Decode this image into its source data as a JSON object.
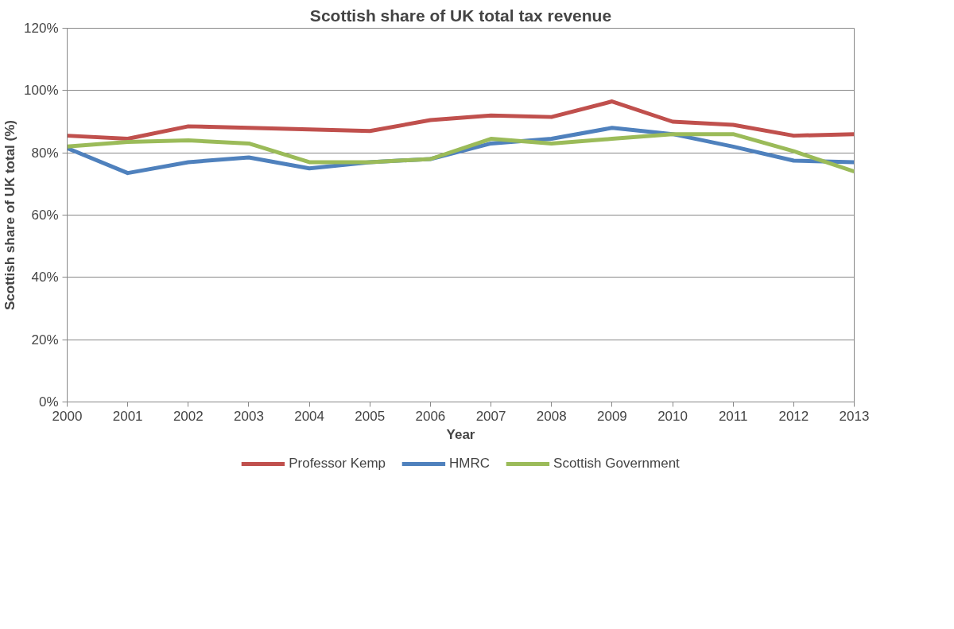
{
  "chart_data": {
    "type": "line",
    "title": "Scottish share of UK total tax revenue",
    "xlabel": "Year",
    "ylabel": "Scottish share of UK total (%)",
    "x": [
      2000,
      2001,
      2002,
      2003,
      2004,
      2005,
      2006,
      2007,
      2008,
      2009,
      2010,
      2011,
      2012,
      2013
    ],
    "series": [
      {
        "name": "Professor Kemp",
        "color": "#c0504d",
        "values": [
          85.5,
          84.5,
          88.5,
          88,
          87.5,
          87,
          90.5,
          92,
          91.5,
          96.5,
          90,
          89,
          85.5,
          86
        ]
      },
      {
        "name": "HMRC",
        "color": "#4f81bd",
        "values": [
          81.5,
          73.5,
          77,
          78.5,
          75,
          77,
          78,
          83,
          84.5,
          88,
          86,
          82,
          77.5,
          77
        ]
      },
      {
        "name": "Scottish Government",
        "color": "#9bbb59",
        "values": [
          82,
          83.5,
          84,
          83,
          77,
          77,
          78,
          84.5,
          83,
          84.5,
          86,
          86,
          80.5,
          74
        ]
      }
    ],
    "xlim": [
      2000,
      2013
    ],
    "ylim": [
      0,
      120
    ],
    "xticks": [
      2000,
      2001,
      2002,
      2003,
      2004,
      2005,
      2006,
      2007,
      2008,
      2009,
      2010,
      2011,
      2012,
      2013
    ],
    "yticks": [
      {
        "value": 0,
        "label": "0%"
      },
      {
        "value": 20,
        "label": "20%"
      },
      {
        "value": 40,
        "label": "40%"
      },
      {
        "value": 60,
        "label": "60%"
      },
      {
        "value": 80,
        "label": "80%"
      },
      {
        "value": 100,
        "label": "100%"
      },
      {
        "value": 120,
        "label": "120%"
      }
    ],
    "grid": "y",
    "legend": "bottom",
    "marker": "none",
    "line_style": "solid"
  }
}
